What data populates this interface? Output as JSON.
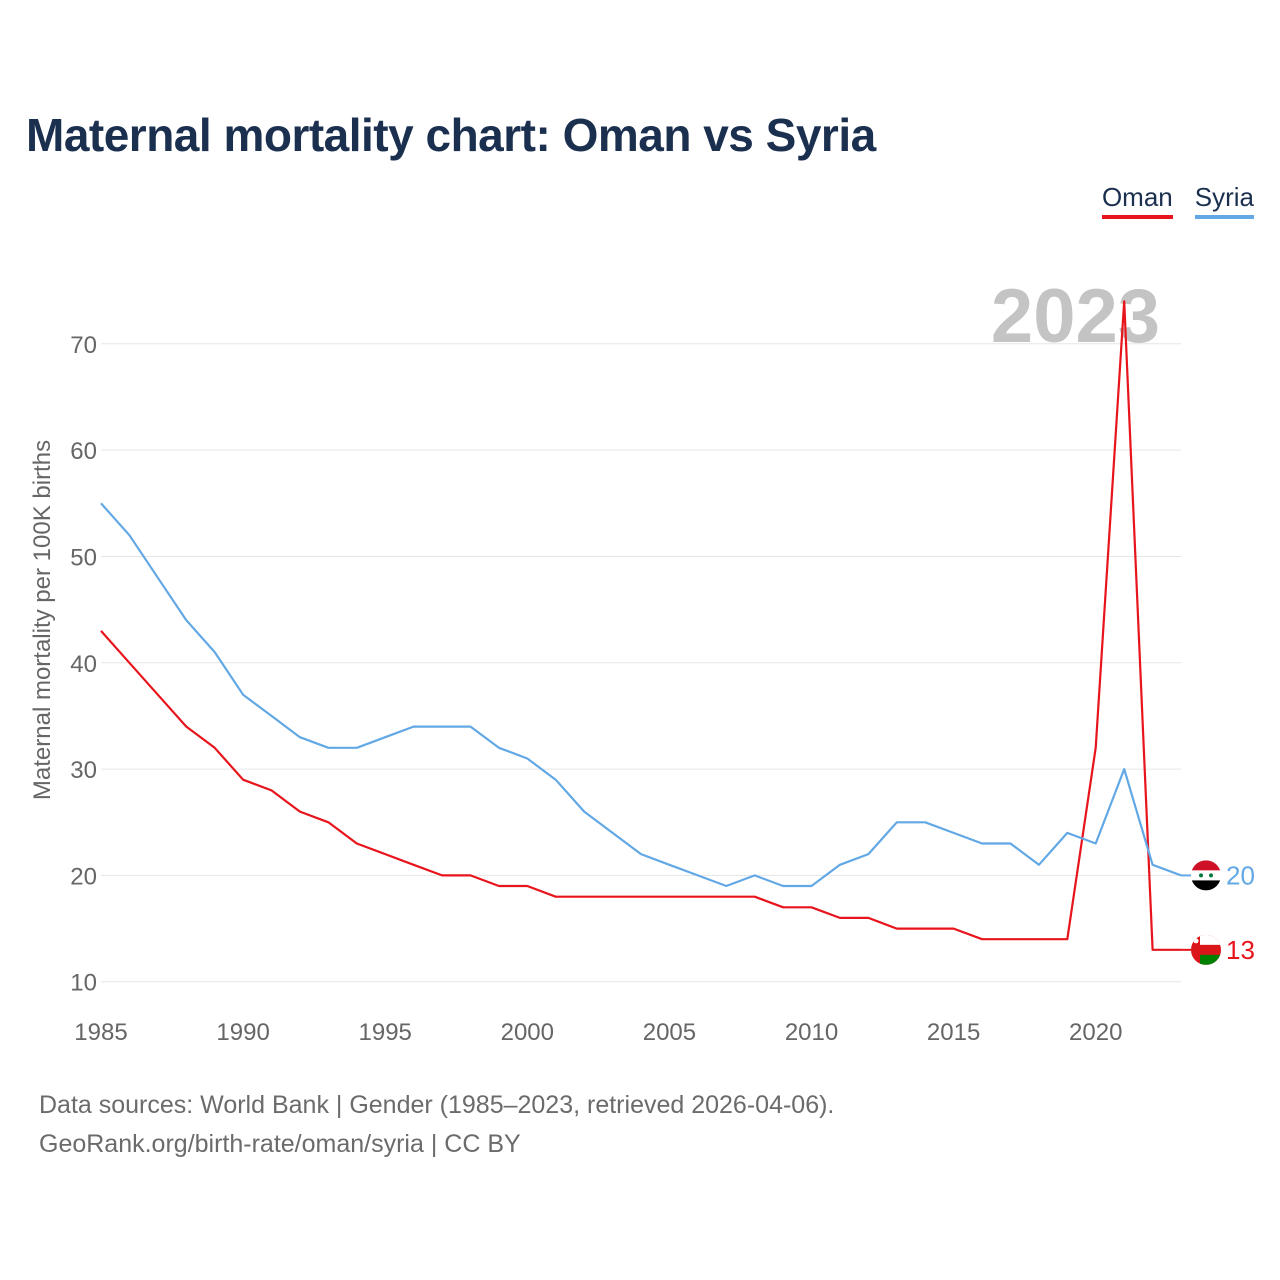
{
  "title": "Maternal mortality chart: Oman vs Syria",
  "legend": {
    "oman": "Oman",
    "syria": "Syria"
  },
  "year_watermark": "2023",
  "footer": {
    "source": "Data sources: World Bank | Gender (1985–2023, retrieved 2026-04-06).",
    "credit": "GeoRank.org/birth-rate/oman/syria | CC BY"
  },
  "end_labels": {
    "oman": "13",
    "syria": "20"
  },
  "colors": {
    "oman": "#e8141c",
    "syria": "#62a8e5",
    "grid": "#e6e6e6",
    "axis_text": "#666666",
    "title": "#1b2f4f"
  },
  "chart_data": {
    "type": "line",
    "title": "Maternal mortality chart: Oman vs Syria",
    "xlabel": "",
    "ylabel": "Maternal mortality per 100K births",
    "xlim": [
      1985,
      2023
    ],
    "ylim": [
      8,
      76
    ],
    "xticks": [
      1985,
      1990,
      1995,
      2000,
      2005,
      2010,
      2015,
      2020
    ],
    "yticks": [
      10,
      20,
      30,
      40,
      50,
      60,
      70
    ],
    "grid": true,
    "legend_position": "top-right",
    "x": [
      1985,
      1986,
      1987,
      1988,
      1989,
      1990,
      1991,
      1992,
      1993,
      1994,
      1995,
      1996,
      1997,
      1998,
      1999,
      2000,
      2001,
      2002,
      2003,
      2004,
      2005,
      2006,
      2007,
      2008,
      2009,
      2010,
      2011,
      2012,
      2013,
      2014,
      2015,
      2016,
      2017,
      2018,
      2019,
      2020,
      2021,
      2022,
      2023
    ],
    "series": [
      {
        "name": "Oman",
        "color": "#e8141c",
        "values": [
          43,
          40,
          37,
          34,
          32,
          29,
          28,
          26,
          25,
          23,
          22,
          21,
          20,
          20,
          19,
          19,
          18,
          18,
          18,
          18,
          18,
          18,
          18,
          18,
          17,
          17,
          16,
          16,
          15,
          15,
          15,
          14,
          14,
          14,
          14,
          32,
          74,
          13,
          13
        ]
      },
      {
        "name": "Syria",
        "color": "#62a8e5",
        "values": [
          55,
          52,
          48,
          44,
          41,
          37,
          35,
          33,
          32,
          32,
          33,
          34,
          34,
          34,
          32,
          31,
          29,
          26,
          24,
          22,
          21,
          20,
          19,
          20,
          19,
          19,
          21,
          22,
          25,
          25,
          24,
          23,
          23,
          21,
          24,
          23,
          30,
          21,
          20
        ]
      }
    ]
  }
}
